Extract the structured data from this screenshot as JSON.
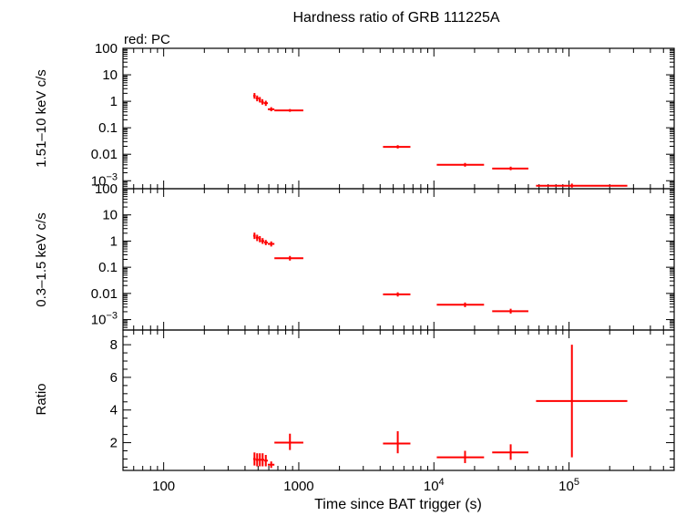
{
  "chart_data": [
    {
      "type": "scatter",
      "title": "Hardness ratio of GRB 111225A",
      "subtitle": "red: PC",
      "ylabel": "1.51–10 keV c/s",
      "yscale": "log",
      "ylim": [
        0.0005,
        100
      ],
      "yticks": [
        {
          "v": 100,
          "base": "100",
          "exp": ""
        },
        {
          "v": 10,
          "base": "10",
          "exp": ""
        },
        {
          "v": 1,
          "base": "1",
          "exp": ""
        },
        {
          "v": 0.1,
          "base": "0.1",
          "exp": ""
        },
        {
          "v": 0.01,
          "base": "0.01",
          "exp": ""
        },
        {
          "v": 0.001,
          "base": "10",
          "exp": "−3"
        }
      ],
      "series": [
        {
          "color": "#ff0000",
          "points": [
            {
              "x": 470,
              "xlo": 460,
              "xhi": 480,
              "y": 1.6,
              "ylo": 1.25,
              "yhi": 2.05
            },
            {
              "x": 492,
              "xlo": 480,
              "xhi": 505,
              "y": 1.3,
              "ylo": 1.0,
              "yhi": 1.65
            },
            {
              "x": 515,
              "xlo": 505,
              "xhi": 525,
              "y": 1.15,
              "ylo": 0.9,
              "yhi": 1.45
            },
            {
              "x": 538,
              "xlo": 525,
              "xhi": 550,
              "y": 0.95,
              "ylo": 0.75,
              "yhi": 1.2
            },
            {
              "x": 570,
              "xlo": 550,
              "xhi": 590,
              "y": 0.85,
              "ylo": 0.67,
              "yhi": 1.05
            },
            {
              "x": 625,
              "xlo": 590,
              "xhi": 660,
              "y": 0.5,
              "ylo": 0.42,
              "yhi": 0.6
            },
            {
              "x": 860,
              "xlo": 660,
              "xhi": 1080,
              "y": 0.45,
              "ylo": 0.4,
              "yhi": 0.51
            },
            {
              "x": 5400,
              "xlo": 4200,
              "xhi": 6700,
              "y": 0.019,
              "ylo": 0.0165,
              "yhi": 0.022
            },
            {
              "x": 17000,
              "xlo": 10500,
              "xhi": 23500,
              "y": 0.004,
              "ylo": 0.0034,
              "yhi": 0.0047
            },
            {
              "x": 37000,
              "xlo": 27000,
              "xhi": 50000,
              "y": 0.0029,
              "ylo": 0.0025,
              "yhi": 0.0034
            },
            {
              "x": 105000,
              "xlo": 57000,
              "xhi": 270000,
              "y": 0.00065,
              "ylo": 0.00055,
              "yhi": 0.00078
            }
          ]
        }
      ]
    },
    {
      "type": "scatter",
      "ylabel": "0.3–1.5 keV c/s",
      "yscale": "log",
      "ylim": [
        0.0004,
        100
      ],
      "yticks": [
        {
          "v": 100,
          "base": "100",
          "exp": ""
        },
        {
          "v": 10,
          "base": "10",
          "exp": ""
        },
        {
          "v": 1,
          "base": "1",
          "exp": ""
        },
        {
          "v": 0.1,
          "base": "0.1",
          "exp": ""
        },
        {
          "v": 0.01,
          "base": "0.01",
          "exp": ""
        },
        {
          "v": 0.001,
          "base": "10",
          "exp": "−3"
        }
      ],
      "series": [
        {
          "color": "#ff0000",
          "points": [
            {
              "x": 470,
              "xlo": 460,
              "xhi": 480,
              "y": 1.6,
              "ylo": 1.2,
              "yhi": 2.1
            },
            {
              "x": 492,
              "xlo": 480,
              "xhi": 505,
              "y": 1.35,
              "ylo": 1.0,
              "yhi": 1.75
            },
            {
              "x": 515,
              "xlo": 505,
              "xhi": 525,
              "y": 1.2,
              "ylo": 0.9,
              "yhi": 1.55
            },
            {
              "x": 540,
              "xlo": 525,
              "xhi": 555,
              "y": 1.0,
              "ylo": 0.78,
              "yhi": 1.3
            },
            {
              "x": 570,
              "xlo": 555,
              "xhi": 590,
              "y": 0.88,
              "ylo": 0.7,
              "yhi": 1.1
            },
            {
              "x": 625,
              "xlo": 590,
              "xhi": 660,
              "y": 0.78,
              "ylo": 0.62,
              "yhi": 0.97
            },
            {
              "x": 860,
              "xlo": 660,
              "xhi": 1080,
              "y": 0.22,
              "ylo": 0.18,
              "yhi": 0.27
            },
            {
              "x": 5400,
              "xlo": 4200,
              "xhi": 6700,
              "y": 0.0092,
              "ylo": 0.0076,
              "yhi": 0.011
            },
            {
              "x": 17000,
              "xlo": 10500,
              "xhi": 23500,
              "y": 0.0037,
              "ylo": 0.003,
              "yhi": 0.0045
            },
            {
              "x": 37000,
              "xlo": 27000,
              "xhi": 50000,
              "y": 0.0021,
              "ylo": 0.0017,
              "yhi": 0.0026
            }
          ]
        }
      ]
    },
    {
      "type": "scatter",
      "ylabel": "Ratio",
      "xlabel": "Time since BAT trigger (s)",
      "xscale": "log",
      "xlim": [
        50,
        600000
      ],
      "xticks": [
        {
          "v": 100,
          "base": "100",
          "exp": ""
        },
        {
          "v": 1000,
          "base": "1000",
          "exp": ""
        },
        {
          "v": 10000,
          "base": "10",
          "exp": "4"
        },
        {
          "v": 100000,
          "base": "10",
          "exp": "5"
        }
      ],
      "yscale": "linear",
      "ylim": [
        0.3,
        8.9
      ],
      "yticks": [
        {
          "v": 2,
          "base": "2",
          "exp": ""
        },
        {
          "v": 4,
          "base": "4",
          "exp": ""
        },
        {
          "v": 6,
          "base": "6",
          "exp": ""
        },
        {
          "v": 8,
          "base": "8",
          "exp": ""
        }
      ],
      "series": [
        {
          "color": "#ff0000",
          "points": [
            {
              "x": 470,
              "xlo": 460,
              "xhi": 480,
              "y": 1.0,
              "ylo": 0.6,
              "yhi": 1.4
            },
            {
              "x": 492,
              "xlo": 480,
              "xhi": 505,
              "y": 0.95,
              "ylo": 0.55,
              "yhi": 1.35
            },
            {
              "x": 515,
              "xlo": 505,
              "xhi": 525,
              "y": 0.95,
              "ylo": 0.55,
              "yhi": 1.35
            },
            {
              "x": 540,
              "xlo": 525,
              "xhi": 555,
              "y": 0.95,
              "ylo": 0.55,
              "yhi": 1.35
            },
            {
              "x": 570,
              "xlo": 555,
              "xhi": 590,
              "y": 0.9,
              "ylo": 0.55,
              "yhi": 1.25
            },
            {
              "x": 625,
              "xlo": 590,
              "xhi": 660,
              "y": 0.65,
              "ylo": 0.45,
              "yhi": 0.85
            },
            {
              "x": 860,
              "xlo": 660,
              "xhi": 1080,
              "y": 2.0,
              "ylo": 1.55,
              "yhi": 2.55
            },
            {
              "x": 5400,
              "xlo": 4200,
              "xhi": 6700,
              "y": 1.95,
              "ylo": 1.35,
              "yhi": 2.7
            },
            {
              "x": 17000,
              "xlo": 10500,
              "xhi": 23500,
              "y": 1.1,
              "ylo": 0.75,
              "yhi": 1.5
            },
            {
              "x": 37000,
              "xlo": 27000,
              "xhi": 50000,
              "y": 1.4,
              "ylo": 0.95,
              "yhi": 1.9
            },
            {
              "x": 105000,
              "xlo": 57000,
              "xhi": 270000,
              "y": 4.55,
              "ylo": 1.1,
              "yhi": 8.0
            }
          ]
        }
      ]
    }
  ]
}
